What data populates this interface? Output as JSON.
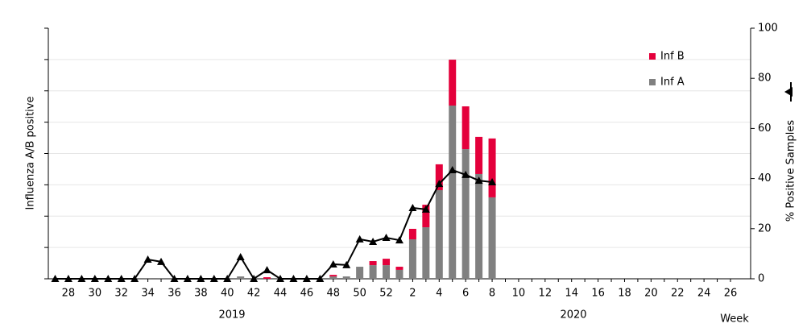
{
  "chart_data": {
    "type": "bar_line",
    "ylabel": "Influenza A/B positive",
    "y2label": "% Positive Samples",
    "xlabel": "Week",
    "year_labels": [
      "2019",
      "2020"
    ],
    "categories": [
      null,
      "28",
      null,
      "30",
      null,
      "32",
      null,
      "34",
      null,
      "36",
      null,
      "38",
      null,
      "40",
      null,
      "42",
      null,
      "44",
      null,
      "46",
      null,
      "48",
      null,
      "50",
      null,
      "52",
      null,
      "2",
      null,
      "4",
      null,
      "6",
      null,
      "8",
      null,
      "10",
      null,
      "12",
      null,
      "14",
      null,
      "16",
      null,
      "18",
      null,
      "20",
      null,
      "22",
      null,
      "24",
      null,
      "26"
    ],
    "series": [
      {
        "name": "Inf A",
        "color": "#808080",
        "kind": "bar",
        "values": [
          0,
          0,
          0,
          0,
          0,
          0,
          0,
          0.5,
          0.5,
          0,
          0,
          0,
          0,
          0,
          1.5,
          0,
          0,
          0,
          0,
          0,
          0,
          1.5,
          1.5,
          7.7,
          8.7,
          8.7,
          5.7,
          25.2,
          32.9,
          56.6,
          110.6,
          82.8,
          66.9,
          52,
          null,
          null,
          null,
          null,
          null,
          null,
          null,
          null,
          null,
          null,
          null,
          null,
          null,
          null,
          null,
          null,
          null,
          null
        ]
      },
      {
        "name": "Inf B",
        "color": "#e4003b",
        "kind": "bar",
        "values": [
          0,
          0,
          0,
          0,
          0,
          0,
          0,
          0,
          0,
          0,
          0,
          0,
          0,
          0,
          0,
          0,
          1,
          0,
          0,
          0,
          0,
          1,
          0,
          0,
          2.6,
          4.1,
          2,
          6.7,
          14.4,
          16.5,
          29.3,
          27.3,
          23.7,
          37.6,
          null,
          null,
          null,
          null,
          null,
          null,
          null,
          null,
          null,
          null,
          null,
          null,
          null,
          null,
          null,
          null,
          null,
          null
        ]
      },
      {
        "color": "#000000",
        "kind": "line",
        "axis": "y2",
        "values": [
          0,
          0,
          0,
          0,
          0,
          0,
          0,
          7.7,
          6.8,
          0,
          0,
          0,
          0,
          0,
          8.7,
          0,
          3.5,
          0,
          0,
          0,
          0,
          5.8,
          5.5,
          15.8,
          14.8,
          16.4,
          15.4,
          28.3,
          27.7,
          37.9,
          43.4,
          41.5,
          39.2,
          38.6,
          null,
          null,
          null,
          null,
          null,
          null,
          null,
          null,
          null,
          null,
          null,
          null,
          null,
          null,
          null,
          null,
          null,
          null
        ]
      }
    ],
    "ylim": [
      0,
      160
    ],
    "yticks": [
      0,
      20,
      40,
      60,
      80,
      100,
      120,
      140,
      160
    ],
    "ytick_labels": false,
    "y2lim": [
      0,
      100
    ],
    "y2ticks": [
      0,
      20,
      40,
      60,
      80,
      100
    ],
    "grid": true,
    "legend": "upper right"
  }
}
